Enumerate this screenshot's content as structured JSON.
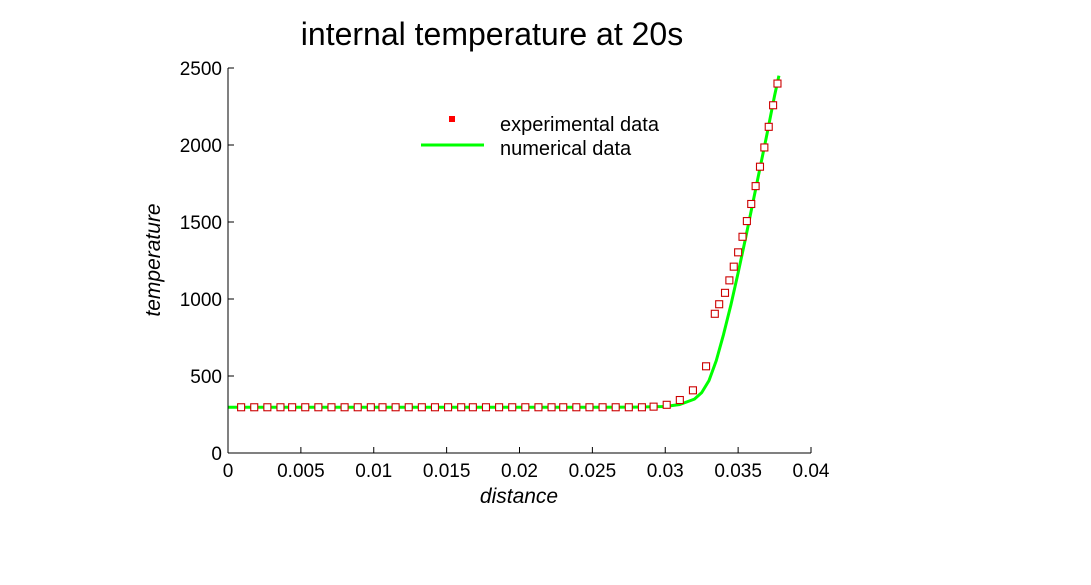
{
  "chart_data": {
    "type": "scatter",
    "title": "internal temperature at 20s",
    "xlabel": "distance",
    "ylabel": "temperature",
    "xlim": [
      0,
      0.04
    ],
    "ylim": [
      0,
      2500
    ],
    "xticks": [
      0,
      0.005,
      0.01,
      0.015,
      0.02,
      0.025,
      0.03,
      0.035,
      0.04
    ],
    "xtick_labels": [
      "0",
      "0.005",
      "0.01",
      "0.015",
      "0.02",
      "0.025",
      "0.03",
      "0.035",
      "0.04"
    ],
    "yticks": [
      0,
      500,
      1000,
      1500,
      2000,
      2500
    ],
    "ytick_labels": [
      "0",
      "500",
      "1000",
      "1500",
      "2000",
      "2500"
    ],
    "grid": false,
    "legend_position": "top-center",
    "series": [
      {
        "name": "experimental data",
        "kind": "markers",
        "marker": "open-square",
        "color": "#cc0000",
        "legend_color": "#ff0000",
        "x": [
          0.0009,
          0.0018,
          0.0027,
          0.0036,
          0.0044,
          0.0053,
          0.0062,
          0.0071,
          0.008,
          0.0089,
          0.0098,
          0.0106,
          0.0115,
          0.0124,
          0.0133,
          0.0142,
          0.0151,
          0.016,
          0.0168,
          0.0177,
          0.0186,
          0.0195,
          0.0204,
          0.0213,
          0.0222,
          0.023,
          0.0239,
          0.0248,
          0.0257,
          0.0266,
          0.0275,
          0.0284,
          0.0292,
          0.0301,
          0.031,
          0.0319,
          0.0328,
          0.0334,
          0.0337,
          0.0341,
          0.0344,
          0.0347,
          0.035,
          0.0353,
          0.0356,
          0.0359,
          0.0362,
          0.0365,
          0.0368,
          0.0371,
          0.0374,
          0.0377
        ],
        "y": [
          297,
          297,
          297,
          297,
          297,
          297,
          297,
          297,
          297,
          297,
          297,
          297,
          297,
          297,
          297,
          297,
          297,
          297,
          297,
          297,
          297,
          297,
          297,
          297,
          297,
          297,
          297,
          297,
          297,
          297,
          297,
          297,
          301,
          313,
          344,
          407,
          563,
          904,
          966,
          1040,
          1121,
          1210,
          1303,
          1404,
          1506,
          1617,
          1733,
          1859,
          1984,
          2118,
          2258,
          2399
        ]
      },
      {
        "name": "numerical data",
        "kind": "line",
        "color": "#00ff00",
        "x": [
          0,
          0.005,
          0.01,
          0.015,
          0.02,
          0.025,
          0.028,
          0.03,
          0.031,
          0.032,
          0.0325,
          0.033,
          0.0335,
          0.034,
          0.0345,
          0.035,
          0.0355,
          0.036,
          0.0365,
          0.037,
          0.0375,
          0.0378
        ],
        "y": [
          297,
          297,
          297,
          297,
          297,
          297,
          298,
          302,
          315,
          350,
          392,
          470,
          600,
          770,
          960,
          1170,
          1390,
          1620,
          1850,
          2080,
          2320,
          2450
        ]
      }
    ]
  }
}
